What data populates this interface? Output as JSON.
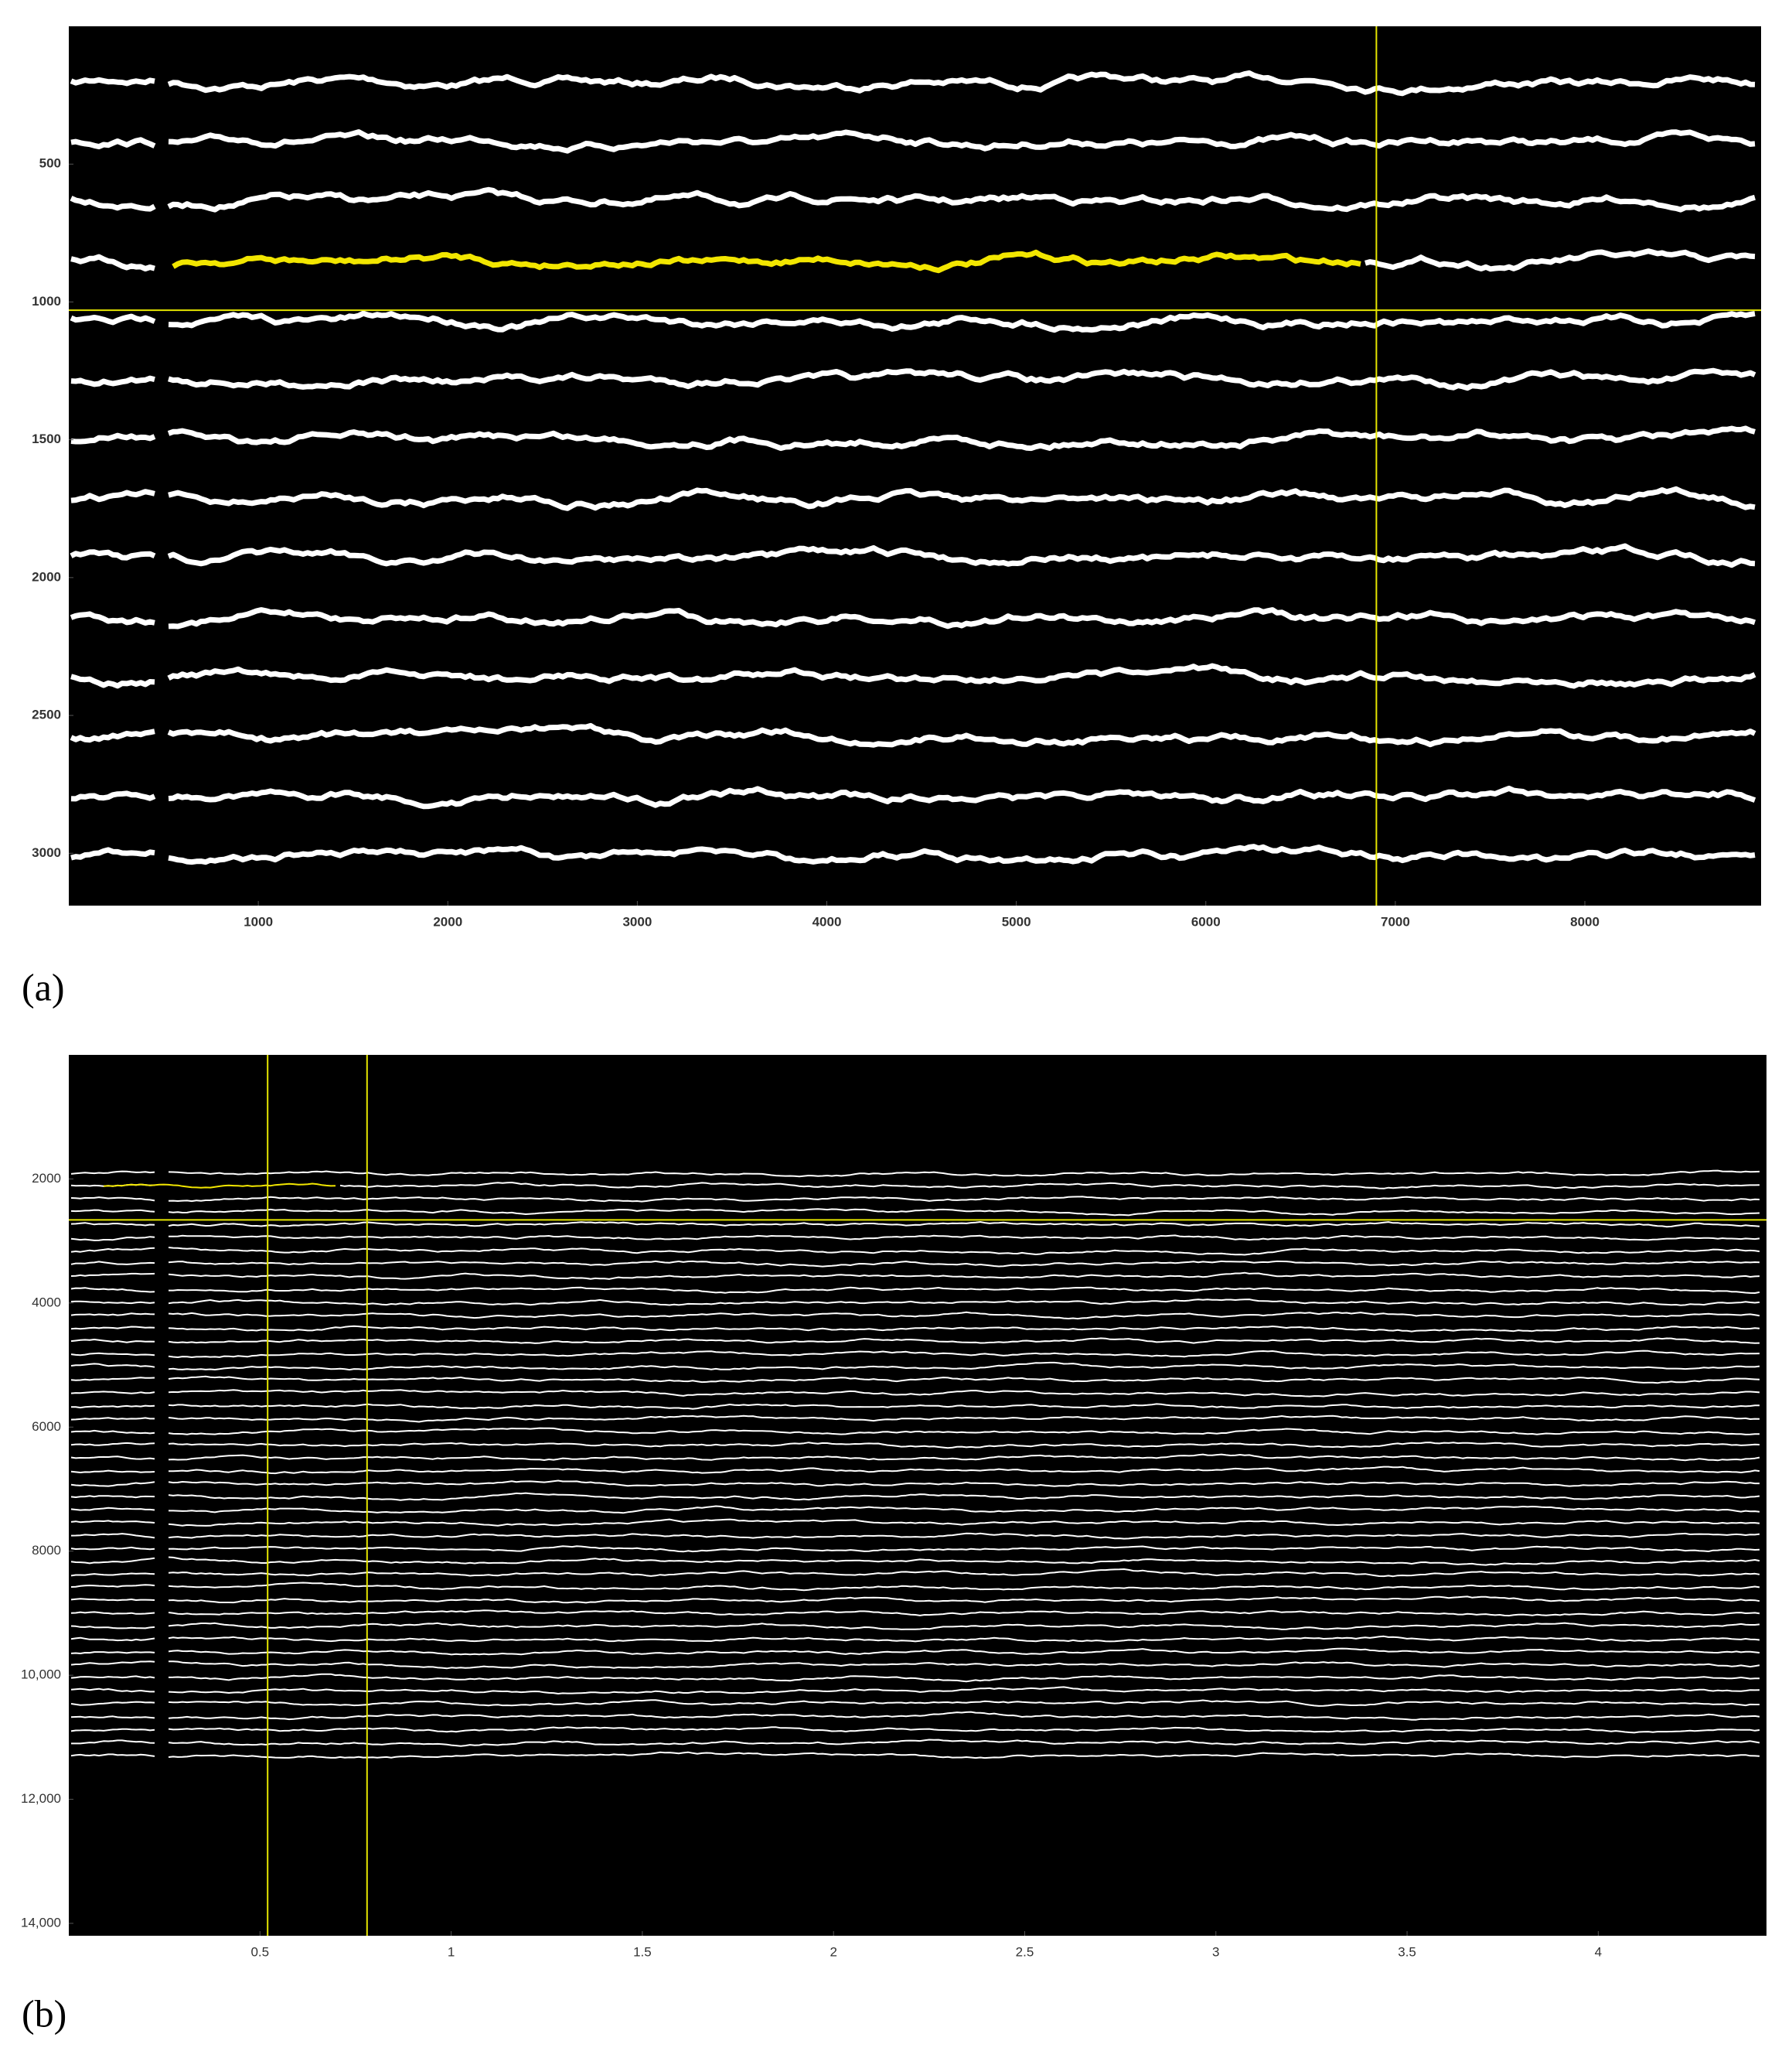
{
  "chart_data": [
    {
      "type": "image",
      "panel_label": "(a)",
      "xlim": [
        0,
        8930
      ],
      "ylim": [
        3190,
        0
      ],
      "xticks": [
        1000,
        2000,
        3000,
        4000,
        5000,
        6000,
        7000,
        8000
      ],
      "yticks": [
        500,
        1000,
        1500,
        2000,
        2500,
        3000
      ],
      "crosshair_x": [
        6900
      ],
      "crosshair_y": [
        1030
      ],
      "crosshair_color": "#e6e600"
    },
    {
      "type": "image",
      "panel_label": "(b)",
      "xlim": [
        0,
        4.44
      ],
      "ylim": [
        14200,
        0
      ],
      "xticks": [
        0.5,
        1,
        1.5,
        2,
        2.5,
        3,
        3.5,
        4
      ],
      "yticks": [
        2000,
        4000,
        6000,
        8000,
        {
          "value": 10000,
          "label": "10,000"
        },
        {
          "value": 12000,
          "label": "12,000"
        },
        {
          "value": 14000,
          "label": "14,000"
        }
      ],
      "crosshair_x": [
        0.52,
        0.78
      ],
      "crosshair_y": [
        2660
      ],
      "crosshair_color": "#e6e600"
    }
  ]
}
